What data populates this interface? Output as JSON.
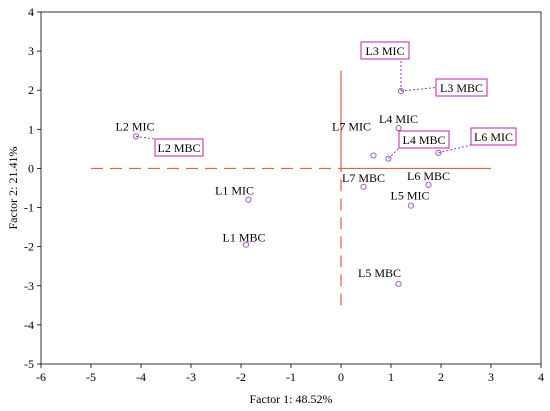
{
  "chart_data": {
    "type": "scatter",
    "title": "",
    "xlabel": "Factor 1: 48.52%",
    "ylabel": "Factor 2: 21.41%",
    "xlim": [
      -6,
      4
    ],
    "ylim": [
      -5,
      4
    ],
    "x_ticks": [
      -6,
      -5,
      -4,
      -3,
      -2,
      -1,
      0,
      1,
      2,
      3,
      4
    ],
    "y_ticks": [
      -5,
      -4,
      -3,
      -2,
      -1,
      0,
      1,
      2,
      3,
      4
    ],
    "grid": false,
    "marker": "open-circle",
    "marker_color": "#a05ad0",
    "boxed_label_color": "#c020a8",
    "leader_line_color": "#8a2aa0",
    "reference_line_color": "#e0604a",
    "reference_lines": {
      "horizontal": {
        "y": 0,
        "x_from": -5,
        "x_to": 3,
        "dashed_segment": [
          -5,
          0
        ],
        "solid_segment": [
          0,
          3
        ]
      },
      "vertical": {
        "x": 0,
        "y_from": -3.5,
        "y_to": 2.5,
        "dashed_segment": [
          -3.5,
          0
        ],
        "solid_segment": [
          0,
          2.5
        ]
      }
    },
    "points": [
      {
        "label": "L1 MIC",
        "x": -1.85,
        "y": -0.8,
        "boxed": false
      },
      {
        "label": "L1 MBC",
        "x": -1.9,
        "y": -1.95,
        "boxed": false
      },
      {
        "label": "L2 MIC",
        "x": -4.1,
        "y": 0.82,
        "boxed": false
      },
      {
        "label": "L2 MBC",
        "x": -4.1,
        "y": 0.82,
        "boxed": true
      },
      {
        "label": "L3 MIC",
        "x": 1.2,
        "y": 1.98,
        "boxed": true
      },
      {
        "label": "L3 MBC",
        "x": 1.2,
        "y": 1.98,
        "boxed": true
      },
      {
        "label": "L4 MIC",
        "x": 1.15,
        "y": 1.03,
        "boxed": false
      },
      {
        "label": "L4 MBC",
        "x": 0.95,
        "y": 0.25,
        "boxed": true
      },
      {
        "label": "L5 MIC",
        "x": 1.4,
        "y": -0.95,
        "boxed": false
      },
      {
        "label": "L5 MBC",
        "x": 1.15,
        "y": -2.95,
        "boxed": false
      },
      {
        "label": "L6 MIC",
        "x": 1.95,
        "y": 0.4,
        "boxed": true
      },
      {
        "label": "L6 MBC",
        "x": 1.75,
        "y": -0.42,
        "boxed": false
      },
      {
        "label": "L7 MIC",
        "x": 0.65,
        "y": 0.33,
        "boxed": false
      },
      {
        "label": "L7 MBC",
        "x": 0.45,
        "y": -0.47,
        "boxed": false
      }
    ]
  }
}
